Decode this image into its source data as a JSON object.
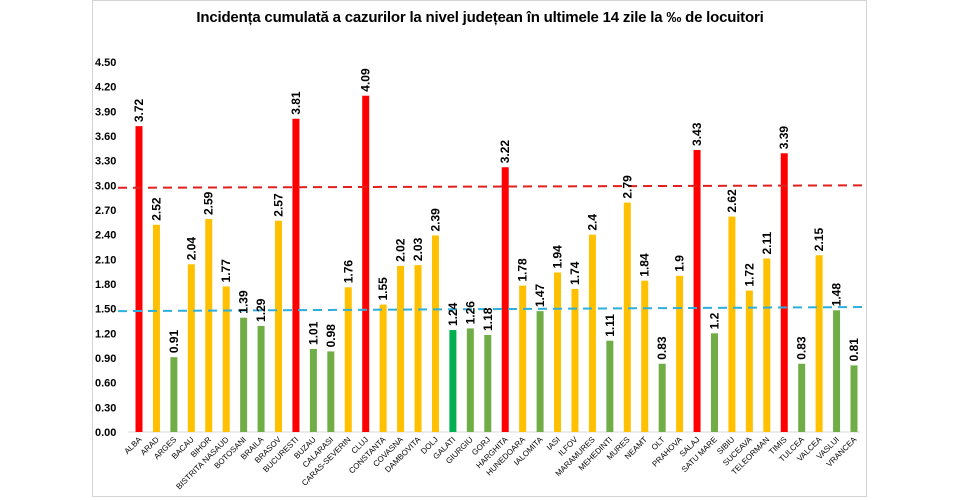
{
  "chart_data": {
    "type": "bar",
    "title": "Incidența cumulată a cazurilor la nivel județean în ultimele 14 zile la ‰ de locuitori",
    "xlabel": "",
    "ylabel": "",
    "ylim": [
      0,
      4.5
    ],
    "yticks": [
      "0.00",
      "0.30",
      "0.60",
      "0.90",
      "1.20",
      "1.50",
      "1.80",
      "2.10",
      "2.40",
      "2.70",
      "3.00",
      "3.30",
      "3.60",
      "3.90",
      "4.20",
      "4.50"
    ],
    "grid": false,
    "legend": "none",
    "categories": [
      "ALBA",
      "ARAD",
      "ARGES",
      "BACAU",
      "BIHOR",
      "BISTRITA NASAUD",
      "BOTOSANI",
      "BRAILA",
      "BRASOV",
      "BUCURESTI",
      "BUZAU",
      "CALARASI",
      "CARAS-SEVERIN",
      "CLUJ",
      "CONSTANTA",
      "COVASNA",
      "DAMBOVITA",
      "DOLJ",
      "GALATI",
      "GIURGIU",
      "GORJ",
      "HARGHITA",
      "HUNEDOARA",
      "IALOMITA",
      "IASI",
      "ILFOV",
      "MARAMURES",
      "MEHEDINTI",
      "MURES",
      "NEAMT",
      "OLT",
      "PRAHOVA",
      "SALAJ",
      "SATU MARE",
      "SIBIU",
      "SUCEAVA",
      "TELEORMAN",
      "TIMIS",
      "TULCEA",
      "VALCEA",
      "VASLUI",
      "VRANCEA"
    ],
    "values": [
      3.72,
      2.52,
      0.91,
      2.04,
      2.59,
      1.77,
      1.39,
      1.29,
      2.57,
      3.81,
      1.01,
      0.98,
      1.76,
      4.09,
      1.55,
      2.02,
      2.03,
      2.39,
      1.24,
      1.26,
      1.18,
      3.22,
      1.78,
      1.47,
      1.94,
      1.74,
      2.4,
      1.11,
      2.79,
      1.84,
      0.83,
      1.9,
      3.43,
      1.2,
      2.62,
      1.72,
      2.11,
      3.39,
      0.83,
      2.15,
      1.48,
      0.81
    ],
    "labels": [
      "3.72",
      "2.52",
      "0.91",
      "2.04",
      "2.59",
      "1.77",
      "1.39",
      "1.29",
      "2.57",
      "3.81",
      "1.01",
      "0.98",
      "1.76",
      "4.09",
      "1.55",
      "2.02",
      "2.03",
      "2.39",
      "1.24",
      "1.26",
      "1.18",
      "3.22",
      "1.78",
      "1.47",
      "1.94",
      "1.74",
      "2.4",
      "1.11",
      "2.79",
      "1.84",
      "0.83",
      "1.9",
      "3.43",
      "1.2",
      "2.62",
      "1.72",
      "2.11",
      "3.39",
      "0.83",
      "2.15",
      "1.48",
      "0.81"
    ],
    "bar_colors": [
      "red",
      "yellow",
      "green",
      "yellow",
      "yellow",
      "yellow",
      "green",
      "green",
      "yellow",
      "red",
      "green",
      "green",
      "yellow",
      "red",
      "yellow",
      "yellow",
      "yellow",
      "yellow",
      "green2",
      "green",
      "green",
      "red",
      "yellow",
      "green",
      "yellow",
      "yellow",
      "yellow",
      "green",
      "yellow",
      "yellow",
      "green",
      "yellow",
      "red",
      "green",
      "yellow",
      "yellow",
      "yellow",
      "red",
      "green",
      "yellow",
      "green",
      "green"
    ],
    "palette": {
      "red": "#ff0000",
      "yellow": "#ffc000",
      "green": "#70ad47",
      "green2": "#00b050"
    },
    "reference_lines": [
      {
        "name": "threshold-3",
        "value_start": 2.97,
        "value_end": 3.0,
        "color": "#e0201e"
      },
      {
        "name": "threshold-1.5",
        "value_start": 1.47,
        "value_end": 1.52,
        "color": "#2eaedb"
      }
    ]
  }
}
